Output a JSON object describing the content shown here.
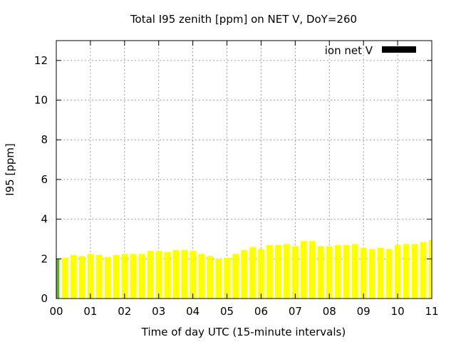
{
  "chart_data": {
    "type": "bar",
    "title": "Total I95 zenith [ppm] on NET V, DoY=260",
    "xlabel": "Time of day UTC (15-minute intervals)",
    "ylabel": "I95 [ppm]",
    "ylim": [
      0,
      13
    ],
    "xlim": [
      0,
      11
    ],
    "yticks": [
      "0",
      "2",
      "4",
      "6",
      "8",
      "10",
      "12"
    ],
    "xticks": [
      "00",
      "01",
      "02",
      "03",
      "04",
      "05",
      "06",
      "07",
      "08",
      "09",
      "10",
      "11"
    ],
    "grid": true,
    "legend": {
      "position": "top-right",
      "entries": [
        "ion net V"
      ]
    },
    "series": [
      {
        "name": "ion net V",
        "legend_color": "#000000",
        "bar_color": "#ffff00",
        "first_bar_color": "#66b032",
        "x": [
          0,
          0.25,
          0.5,
          0.75,
          1,
          1.25,
          1.5,
          1.75,
          2,
          2.25,
          2.5,
          2.75,
          3,
          3.25,
          3.5,
          3.75,
          4,
          4.25,
          4.5,
          4.75,
          5,
          5.25,
          5.5,
          5.75,
          6,
          6.25,
          6.5,
          6.75,
          7,
          7.25,
          7.5,
          7.75,
          8,
          8.25,
          8.5,
          8.75,
          9,
          9.25,
          9.5,
          9.75,
          10,
          10.25,
          10.5,
          10.75,
          11
        ],
        "values": [
          2.0,
          2.05,
          2.2,
          2.15,
          2.25,
          2.2,
          2.1,
          2.2,
          2.25,
          2.25,
          2.25,
          2.4,
          2.4,
          2.35,
          2.45,
          2.45,
          2.4,
          2.25,
          2.15,
          2.0,
          2.05,
          2.25,
          2.45,
          2.6,
          2.5,
          2.7,
          2.7,
          2.75,
          2.65,
          2.9,
          2.9,
          2.65,
          2.65,
          2.7,
          2.7,
          2.75,
          2.55,
          2.5,
          2.55,
          2.5,
          2.7,
          2.75,
          2.75,
          2.85,
          2.95
        ]
      }
    ]
  }
}
